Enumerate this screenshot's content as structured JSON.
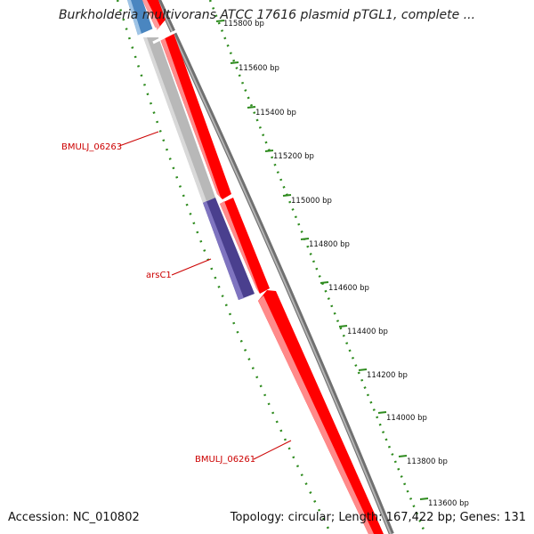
{
  "header": {
    "title": "Burkholderia multivorans ATCC 17616 plasmid pTGL1, complete ..."
  },
  "footer": {
    "accession": "Accession: NC_010802",
    "summary": "Topology: circular; Length: 167,422 bp; Genes: 131"
  },
  "colors": {
    "forward_gene": "#ff0000",
    "gray_gene": "#b8b8b8",
    "purple_gene": "#4a3f8e",
    "blue_gene": "#4a86c0",
    "backbone": "#808080",
    "tick": "#2e8b1e",
    "label": "#cc0000"
  },
  "gene_labels": [
    {
      "text": "BMULJ_06263"
    },
    {
      "text": "arsC1"
    },
    {
      "text": "BMULJ_06261"
    }
  ],
  "scale_ticks": [
    {
      "label": "115800 bp",
      "faded": true
    },
    {
      "label": "115600 bp"
    },
    {
      "label": "115400 bp"
    },
    {
      "label": "115200 bp"
    },
    {
      "label": "115000 bp"
    },
    {
      "label": "114800 bp"
    },
    {
      "label": "114600 bp"
    },
    {
      "label": "114400 bp"
    },
    {
      "label": "114200 bp"
    },
    {
      "label": "114000 bp"
    },
    {
      "label": "113800 bp"
    },
    {
      "label": "113600 bp"
    }
  ]
}
